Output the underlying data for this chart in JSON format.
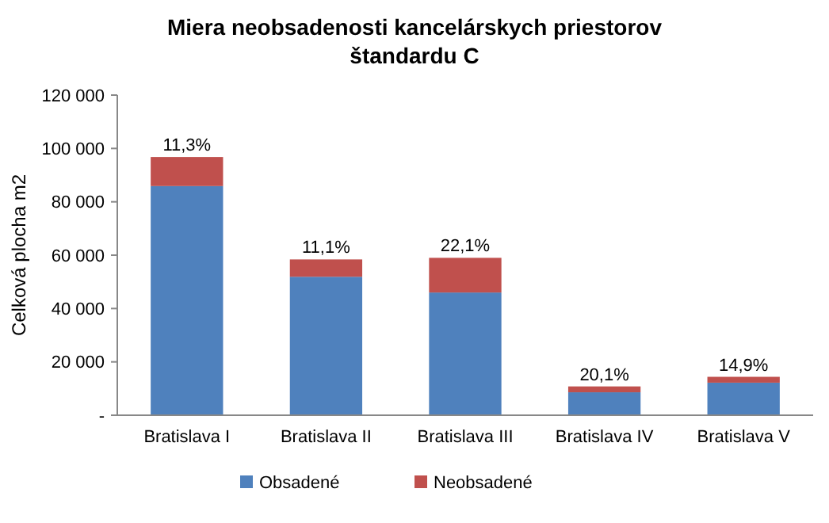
{
  "chart_data": {
    "type": "bar",
    "title": "Miera neobsadenosti kancelárskych priestorov štandardu C",
    "ylabel": "Celková plocha m2",
    "categories": [
      "Bratislava I",
      "Bratislava II",
      "Bratislava III",
      "Bratislava IV",
      "Bratislava V"
    ],
    "stacked": true,
    "legend": "bottom",
    "series": [
      {
        "name": "Obsadené",
        "color": "#4f81bd",
        "values": [
          85900,
          51900,
          46000,
          8600,
          12200
        ]
      },
      {
        "name": "Neobsadené",
        "color": "#c0504d",
        "values": [
          10900,
          6500,
          13000,
          2200,
          2200
        ]
      }
    ],
    "annotations": [
      {
        "text": "11,3%",
        "x": "Bratislava I",
        "y": 96800
      },
      {
        "text": "11,1%",
        "x": "Bratislava II",
        "y": 58400
      },
      {
        "text": "22,1%",
        "x": "Bratislava III",
        "y": 59000
      },
      {
        "text": "20,1%",
        "x": "Bratislava IV",
        "y": 10800
      },
      {
        "text": "14,9%",
        "x": "Bratislava V",
        "y": 14400
      }
    ],
    "ylim": [
      0,
      120000
    ],
    "yticks": [
      {
        "value": 0,
        "label": "-"
      },
      {
        "value": 20000,
        "label": "20 000"
      },
      {
        "value": 40000,
        "label": "40 000"
      },
      {
        "value": 60000,
        "label": "60 000"
      },
      {
        "value": 80000,
        "label": "80 000"
      },
      {
        "value": 100000,
        "label": "100 000"
      },
      {
        "value": 120000,
        "label": "120 000"
      }
    ]
  }
}
